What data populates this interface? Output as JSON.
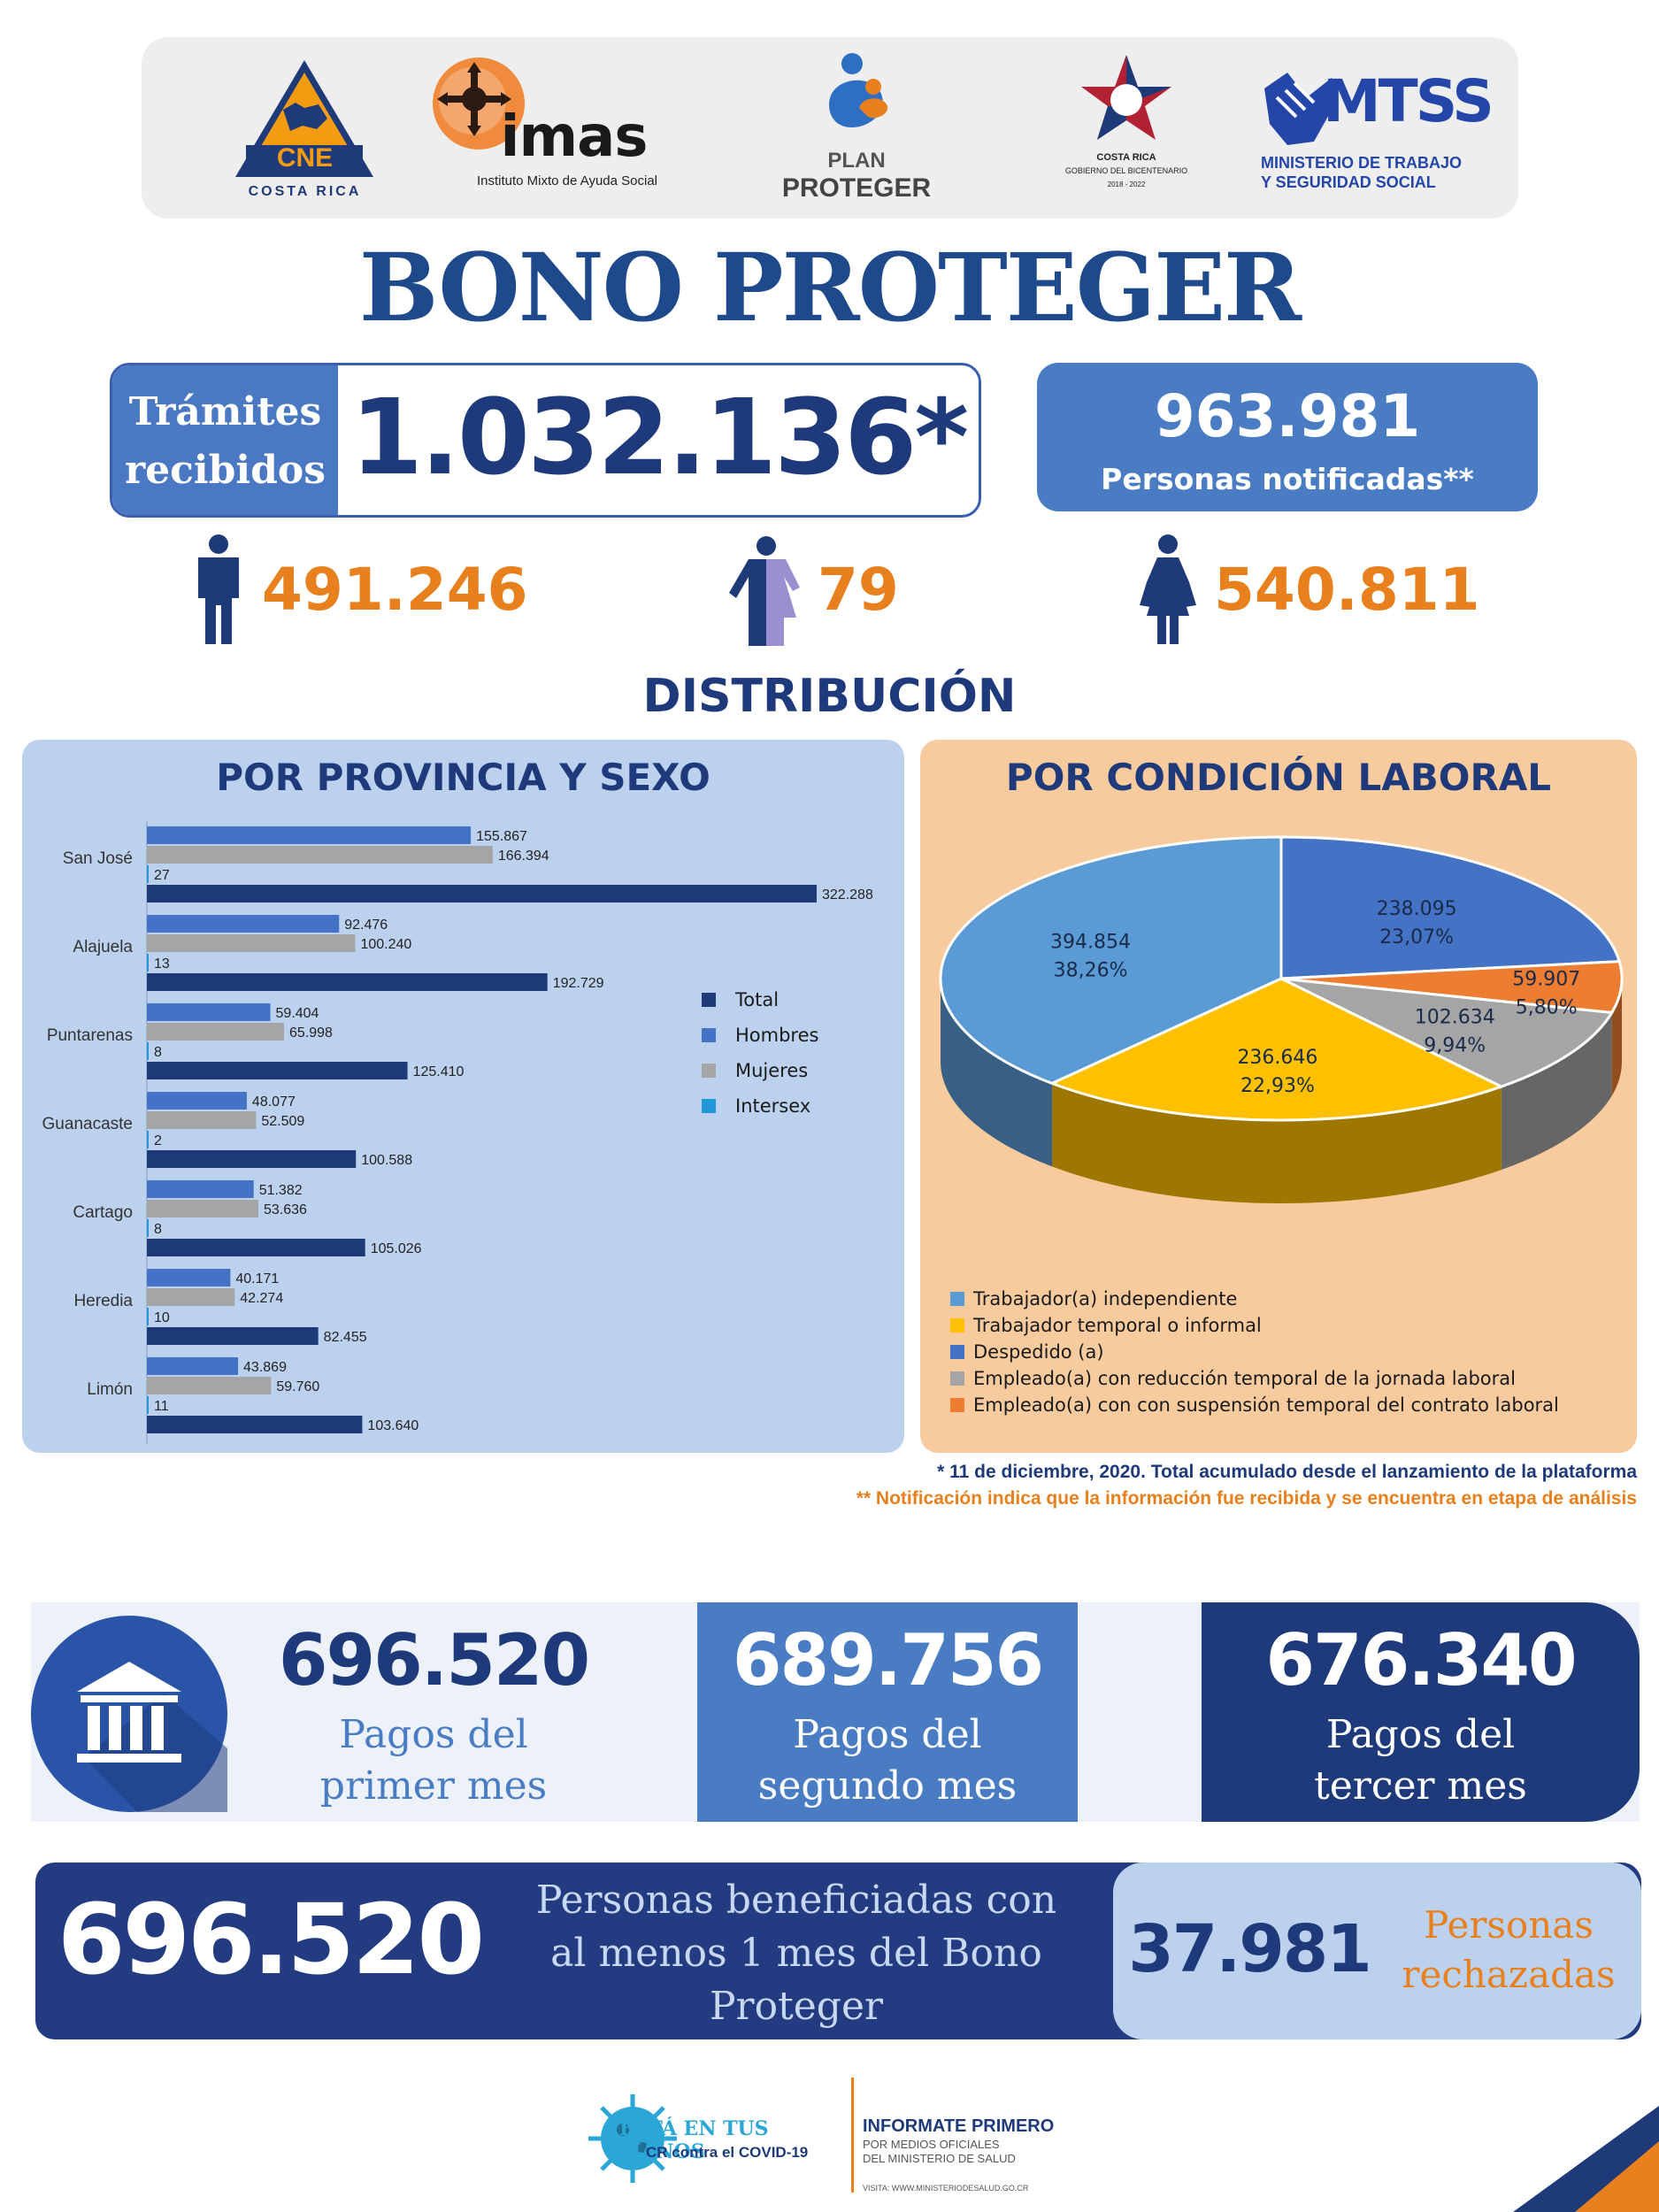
{
  "logos": {
    "cne": {
      "text": "CNE",
      "caption": "COSTA RICA"
    },
    "imas": {
      "text": "imas",
      "caption": "Instituto Mixto de Ayuda Social"
    },
    "plan": {
      "line1": "PLAN",
      "line2": "PROTEGER"
    },
    "gobierno": {
      "line1": "COSTA RICA",
      "line2": "GOBIERNO DEL BICENTENARIO",
      "line3": "2018 - 2022"
    },
    "mtss": {
      "text": "MTSS",
      "line1": "MINISTERIO DE TRABAJO",
      "line2": "Y SEGURIDAD SOCIAL"
    }
  },
  "title": "BONO PROTEGER",
  "tramites": {
    "label_line1": "Trámites",
    "label_line2": "recibidos",
    "value": "1.032.136*"
  },
  "notificadas": {
    "value": "963.981",
    "label": "Personas notificadas**"
  },
  "sexo": {
    "hombres": "491.246",
    "intersex": "79",
    "mujeres": "540.811"
  },
  "distribucion_title": "DISTRIBUCIÓN",
  "panel_left_title": "POR PROVINCIA Y SEXO",
  "panel_right_title": "POR CONDICIÓN LABORAL",
  "colors": {
    "total": "#1f3a78",
    "hombres": "#4472c4",
    "mujeres": "#a5a5a5",
    "intersex": "#2196d9",
    "independiente": "#5b9bd5",
    "temporal": "#ffc000",
    "despedido": "#4472c4",
    "reduccion": "#a5a5a5",
    "suspension": "#ed7d31"
  },
  "chart_data": [
    {
      "type": "bar",
      "orientation": "horizontal",
      "title": "POR PROVINCIA Y SEXO",
      "categories": [
        "San José",
        "Alajuela",
        "Puntarenas",
        "Guanacaste",
        "Cartago",
        "Heredia",
        "Limón"
      ],
      "series": [
        {
          "name": "Hombres",
          "values": [
            155867,
            92476,
            59404,
            48077,
            51382,
            40171,
            43869
          ],
          "labels": [
            "155.867",
            "92.476",
            "59.404",
            "48.077",
            "51.382",
            "40.171",
            "43.869"
          ]
        },
        {
          "name": "Mujeres",
          "values": [
            166394,
            100240,
            65998,
            52509,
            53636,
            42274,
            59760
          ],
          "labels": [
            "166.394",
            "100.240",
            "65.998",
            "52.509",
            "53.636",
            "42.274",
            "59.760"
          ]
        },
        {
          "name": "Intersex",
          "values": [
            27,
            13,
            8,
            2,
            8,
            10,
            11
          ],
          "labels": [
            "27",
            "13",
            "8",
            "2",
            "8",
            "10",
            "11"
          ]
        },
        {
          "name": "Total",
          "values": [
            322288,
            192729,
            125410,
            100588,
            105026,
            82455,
            103640
          ],
          "labels": [
            "322.288",
            "192.729",
            "125.410",
            "100.588",
            "105.026",
            "82.455",
            "103.640"
          ]
        }
      ],
      "legend": [
        "Total",
        "Hombres",
        "Mujeres",
        "Intersex"
      ],
      "legend_position": "right",
      "grid": false
    },
    {
      "type": "pie",
      "title": "POR CONDICIÓN LABORAL",
      "slices": [
        {
          "name": "Despedido (a)",
          "value": 238095,
          "label": "238.095",
          "pct": "23,07%"
        },
        {
          "name": "Empleado(a) con con suspensión temporal del contrato laboral",
          "value": 59907,
          "label": "59.907",
          "pct": "5,80%"
        },
        {
          "name": "Empleado(a) con reducción temporal de la jornada laboral",
          "value": 102634,
          "label": "102.634",
          "pct": "9,94%"
        },
        {
          "name": "Trabajador temporal o informal",
          "value": 236646,
          "label": "236.646",
          "pct": "22,93%"
        },
        {
          "name": "Trabajador(a) independiente",
          "value": 394854,
          "label": "394.854",
          "pct": "38,26%"
        }
      ],
      "legend": [
        "Trabajador(a) independiente",
        "Trabajador temporal o informal",
        "Despedido (a)",
        "Empleado(a) con reducción temporal de la jornada laboral",
        "Empleado(a) con con suspensión temporal del contrato laboral"
      ],
      "legend_position": "bottom"
    }
  ],
  "footnotes": {
    "note1": "* 11 de diciembre, 2020. Total acumulado desde el lanzamiento de la plataforma",
    "note2": "** Notificación indica que la información fue recibida y se encuentra en etapa de análisis"
  },
  "pagos": {
    "mes1": {
      "value": "696.520",
      "line1": "Pagos del",
      "line2": "primer mes"
    },
    "mes2": {
      "value": "689.756",
      "line1": "Pagos del",
      "line2": "segundo mes"
    },
    "mes3": {
      "value": "676.340",
      "line1": "Pagos del",
      "line2": "tercer mes"
    }
  },
  "beneficiadas": {
    "value": "696.520",
    "line1": "Personas beneficiadas con",
    "line2": "al menos 1 mes del Bono",
    "line3": "Proteger"
  },
  "rechazadas": {
    "value": "37.981",
    "line1": "Personas",
    "line2": "rechazadas"
  },
  "footer": {
    "campaign_line1": "ESTÁ EN TUS MANOS",
    "campaign_line2": "CR contra el COVID-19",
    "info_title": "INFORMATE PRIMERO",
    "info_line1": "POR MEDIOS OFICIALES",
    "info_line2": "DEL MINISTERIO DE SALUD",
    "visit": "VISITA: WWW.MINISTERIODESALUD.GO.CR"
  }
}
